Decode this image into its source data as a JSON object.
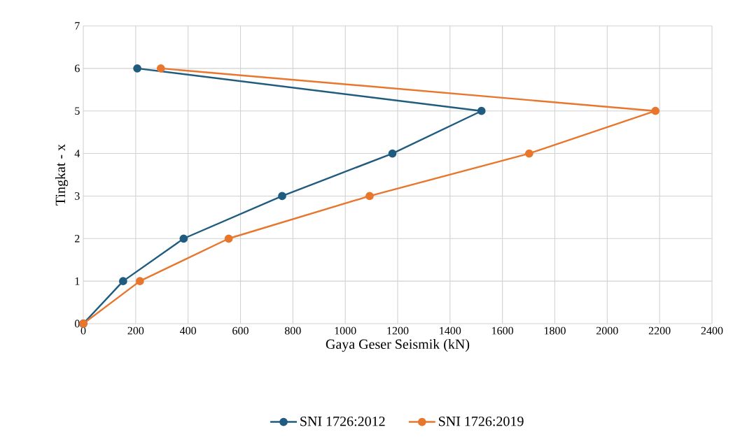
{
  "chart_data": {
    "type": "line",
    "xlabel": "Gaya Geser Seismik (kN)",
    "ylabel": "Tingkat - x",
    "xlim": [
      0,
      2400
    ],
    "xticks": [
      0,
      200,
      400,
      600,
      800,
      1000,
      1200,
      1400,
      1600,
      1800,
      2000,
      2200,
      2400
    ],
    "ylim": [
      0,
      7
    ],
    "yticks": [
      0,
      1,
      2,
      3,
      4,
      5,
      6,
      7
    ],
    "grid": true,
    "legend": "bottom",
    "marker": "circle",
    "line_style": "solid",
    "series": [
      {
        "name": "SNI 1726:2012",
        "color": "#1f5c80",
        "x": [
          0,
          152,
          383,
          759,
          1180,
          1520,
          206
        ],
        "values": [
          0,
          1,
          2,
          3,
          4,
          5,
          6
        ]
      },
      {
        "name": "SNI 1726:2019",
        "color": "#e8762d",
        "x": [
          0,
          216,
          555,
          1093,
          1702,
          2184,
          296
        ],
        "values": [
          0,
          1,
          2,
          3,
          4,
          5,
          6
        ]
      }
    ]
  }
}
